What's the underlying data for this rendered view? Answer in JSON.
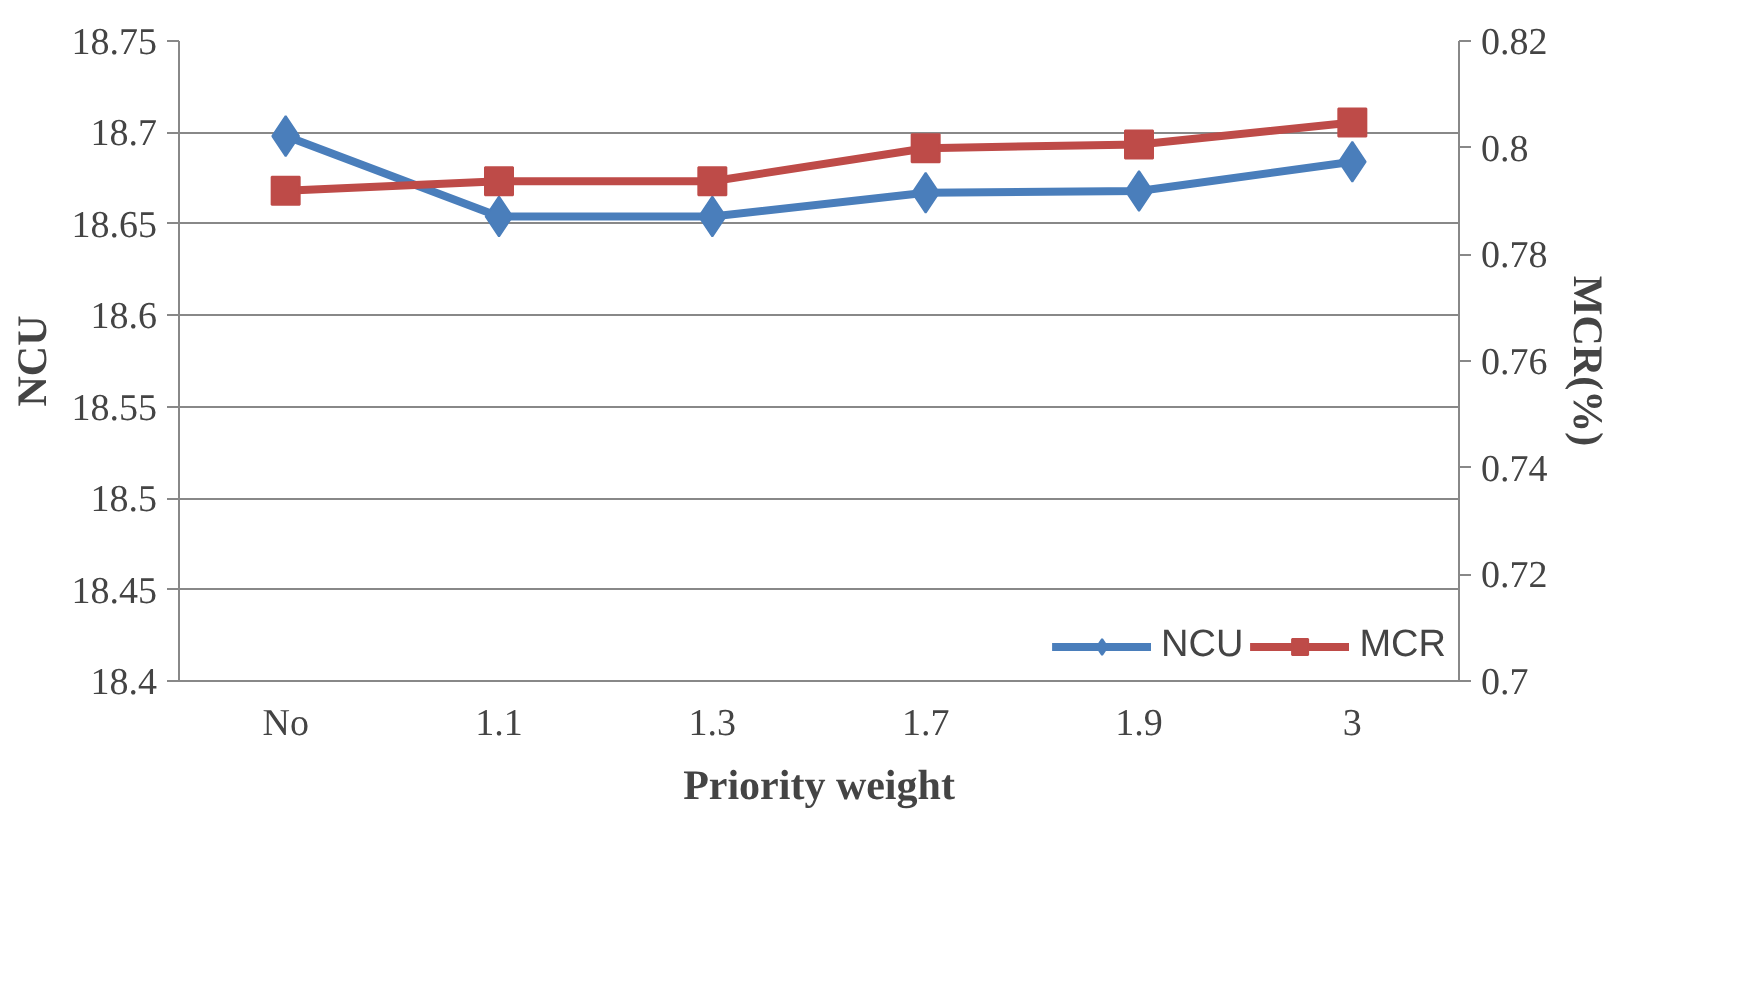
{
  "chart_data": {
    "type": "line",
    "xlabel": "Priority weight",
    "ylabel": "NCU",
    "y2label": "MCR(%)",
    "categories": [
      "No",
      "1.1",
      "1.3",
      "1.7",
      "1.9",
      "3"
    ],
    "series": [
      {
        "name": "NCU",
        "color": "#4a7ebb",
        "marker": "diamond",
        "values": [
          18.698,
          18.654,
          18.654,
          18.667,
          18.668,
          18.684
        ]
      },
      {
        "name": "MCR",
        "color": "#be4b48",
        "marker": "square",
        "axis": "y2",
        "values": [
          0.7919,
          0.7937,
          0.7937,
          0.7999,
          0.8006,
          0.8047
        ]
      }
    ],
    "ylim": [
      18.4,
      18.75
    ],
    "yticks": [
      18.4,
      18.45,
      18.5,
      18.55,
      18.6,
      18.65,
      18.7,
      18.75
    ],
    "y2lim": [
      0.7,
      0.82
    ],
    "y2ticks": [
      0.7,
      0.72,
      0.74,
      0.76,
      0.78,
      0.8,
      0.82
    ],
    "grid": "y",
    "legend": "bottom right",
    "line_style": "solid"
  }
}
